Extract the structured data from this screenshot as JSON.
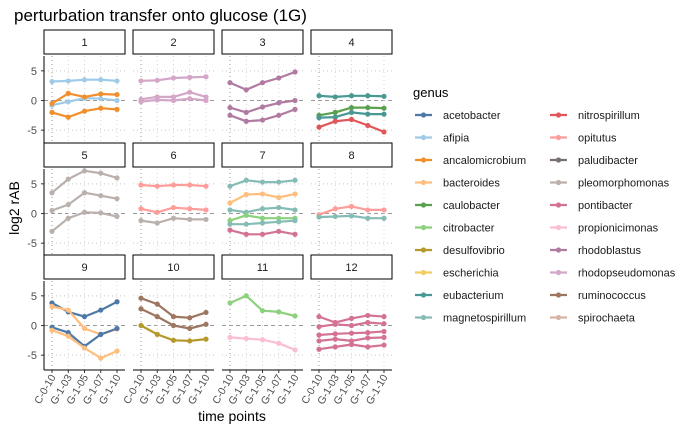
{
  "chart_data": {
    "type": "line",
    "title": "perturbation transfer onto glucose (1G)",
    "xlabel": "time points",
    "ylabel": "log2 rAB",
    "x": [
      "C-0-10",
      "G-1-03",
      "G-1-05",
      "G-1-07",
      "G-1-10"
    ],
    "ylim": [
      -7.5,
      7.5
    ],
    "yticks": [
      -5,
      0,
      5
    ],
    "legend_title": "genus",
    "legend_position": "right",
    "grid": true,
    "palette": {
      "acetobacter": "#4e79a7",
      "afipia": "#a0cbe8",
      "ancalomicrobium": "#f28e2b",
      "bacteroides": "#ffbe7d",
      "caulobacter": "#59a14f",
      "citrobacter": "#8cd17d",
      "desulfovibrio": "#b6992d",
      "escherichia": "#f1ce63",
      "eubacterium": "#499894",
      "magnetospirillum": "#86bcb6",
      "nitrospirillum": "#e15759",
      "opitutus": "#ff9d9a",
      "paludibacter": "#79706e",
      "pleomorphomonas": "#bab0ac",
      "pontibacter": "#d37295",
      "propionicimonas": "#fabfd2",
      "rhodoblastus": "#b07aa1",
      "rhodopseudomonas": "#d4a6c8",
      "ruminococcus": "#9d7660",
      "spirochaeta": "#d7b5a6"
    },
    "legend": [
      "acetobacter",
      "afipia",
      "ancalomicrobium",
      "bacteroides",
      "caulobacter",
      "citrobacter",
      "desulfovibrio",
      "escherichia",
      "eubacterium",
      "magnetospirillum",
      "nitrospirillum",
      "opitutus",
      "paludibacter",
      "pleomorphomonas",
      "pontibacter",
      "propionicimonas",
      "rhodoblastus",
      "rhodopseudomonas",
      "ruminococcus",
      "spirochaeta"
    ],
    "panels": [
      {
        "label": "1",
        "series": [
          {
            "genus": "afipia",
            "values": [
              3.2,
              3.3,
              3.5,
              3.5,
              3.3
            ]
          },
          {
            "genus": "afipia",
            "values": [
              -0.8,
              -0.2,
              0.4,
              0.3,
              0.0
            ]
          },
          {
            "genus": "ancalomicrobium",
            "values": [
              -0.5,
              1.2,
              0.6,
              1.1,
              1.0
            ]
          },
          {
            "genus": "ancalomicrobium",
            "values": [
              -2.0,
              -2.8,
              -1.8,
              -1.3,
              -1.5
            ]
          }
        ]
      },
      {
        "label": "2",
        "series": [
          {
            "genus": "rhodopseudomonas",
            "values": [
              3.3,
              3.4,
              3.8,
              3.9,
              4.0
            ]
          },
          {
            "genus": "rhodopseudomonas",
            "values": [
              0.2,
              0.6,
              0.6,
              1.4,
              0.6
            ]
          },
          {
            "genus": "rhodopseudomonas",
            "values": [
              -0.2,
              0.1,
              0.0,
              0.3,
              0.0
            ]
          }
        ]
      },
      {
        "label": "3",
        "series": [
          {
            "genus": "rhodoblastus",
            "values": [
              3.0,
              1.8,
              3.0,
              3.8,
              4.8
            ]
          },
          {
            "genus": "rhodoblastus",
            "values": [
              -1.2,
              -2.0,
              -1.1,
              -0.4,
              0.0
            ]
          },
          {
            "genus": "rhodoblastus",
            "values": [
              -2.5,
              -3.5,
              -3.3,
              -2.5,
              -1.5
            ]
          }
        ]
      },
      {
        "label": "4",
        "series": [
          {
            "genus": "eubacterium",
            "values": [
              0.8,
              0.6,
              0.8,
              0.8,
              0.7
            ]
          },
          {
            "genus": "caulobacter",
            "values": [
              -2.5,
              -2.0,
              -1.2,
              -1.2,
              -1.3
            ]
          },
          {
            "genus": "eubacterium",
            "values": [
              -2.9,
              -2.8,
              -2.0,
              -2.3,
              -2.3
            ]
          },
          {
            "genus": "nitrospirillum",
            "values": [
              -4.5,
              -3.5,
              -3.2,
              -4.2,
              -5.3
            ]
          }
        ]
      },
      {
        "label": "5",
        "series": [
          {
            "genus": "pleomorphomonas",
            "values": [
              3.5,
              5.8,
              7.2,
              6.8,
              6.0
            ]
          },
          {
            "genus": "pleomorphomonas",
            "values": [
              0.5,
              1.5,
              3.5,
              3.0,
              2.5
            ]
          },
          {
            "genus": "pleomorphomonas",
            "values": [
              -3.0,
              -0.8,
              0.2,
              0.1,
              -0.5
            ]
          }
        ]
      },
      {
        "label": "6",
        "series": [
          {
            "genus": "opitutus",
            "values": [
              4.8,
              4.6,
              4.8,
              4.8,
              4.6
            ]
          },
          {
            "genus": "opitutus",
            "values": [
              0.8,
              0.2,
              1.0,
              0.8,
              0.6
            ]
          },
          {
            "genus": "pleomorphomonas",
            "values": [
              -1.2,
              -1.6,
              -0.8,
              -1.0,
              -1.0
            ]
          }
        ]
      },
      {
        "label": "7",
        "series": [
          {
            "genus": "magnetospirillum",
            "values": [
              4.6,
              5.6,
              5.3,
              5.3,
              5.6
            ]
          },
          {
            "genus": "bacteroides",
            "values": [
              1.8,
              3.2,
              3.3,
              2.7,
              3.3
            ]
          },
          {
            "genus": "magnetospirillum",
            "values": [
              0.6,
              0.2,
              0.8,
              1.0,
              0.6
            ]
          },
          {
            "genus": "citrobacter",
            "values": [
              -1.2,
              -0.3,
              -0.8,
              -0.8,
              -0.8
            ]
          },
          {
            "genus": "magnetospirillum",
            "values": [
              -1.8,
              -1.8,
              -1.6,
              -1.4,
              -1.2
            ]
          },
          {
            "genus": "pontibacter",
            "values": [
              -2.8,
              -3.5,
              -3.5,
              -3.0,
              -3.5
            ]
          }
        ]
      },
      {
        "label": "8",
        "series": [
          {
            "genus": "opitutus",
            "values": [
              -0.2,
              0.8,
              1.2,
              0.6,
              0.6
            ]
          },
          {
            "genus": "magnetospirillum",
            "values": [
              -0.6,
              -0.5,
              -0.4,
              -0.8,
              -0.8
            ]
          }
        ]
      },
      {
        "label": "9",
        "series": [
          {
            "genus": "acetobacter",
            "values": [
              3.8,
              2.3,
              1.5,
              2.6,
              4.0
            ]
          },
          {
            "genus": "bacteroides",
            "values": [
              3.2,
              2.6,
              -0.5,
              -1.5,
              -0.6
            ]
          },
          {
            "genus": "acetobacter",
            "values": [
              -0.3,
              -1.2,
              -3.5,
              -1.5,
              -0.5
            ]
          },
          {
            "genus": "bacteroides",
            "values": [
              -0.8,
              -1.8,
              -3.8,
              -5.5,
              -4.3
            ]
          }
        ]
      },
      {
        "label": "10",
        "series": [
          {
            "genus": "ruminococcus",
            "values": [
              4.6,
              3.6,
              1.5,
              1.3,
              2.2
            ]
          },
          {
            "genus": "ruminococcus",
            "values": [
              2.8,
              1.5,
              0.0,
              -0.5,
              0.2
            ]
          },
          {
            "genus": "desulfovibrio",
            "values": [
              0.0,
              -1.5,
              -2.5,
              -2.6,
              -2.3
            ]
          }
        ]
      },
      {
        "label": "11",
        "series": [
          {
            "genus": "citrobacter",
            "values": [
              3.8,
              5.0,
              2.5,
              2.3,
              1.6
            ]
          },
          {
            "genus": "propionicimonas",
            "values": [
              -2.0,
              -2.2,
              -2.4,
              -3.0,
              -4.1
            ]
          }
        ]
      },
      {
        "label": "12",
        "series": [
          {
            "genus": "pontibacter",
            "values": [
              1.5,
              0.5,
              1.2,
              1.7,
              1.5
            ]
          },
          {
            "genus": "pontibacter",
            "values": [
              -0.2,
              0.2,
              0.0,
              0.5,
              0.3
            ]
          },
          {
            "genus": "pontibacter",
            "values": [
              -1.6,
              -1.4,
              -1.3,
              -1.2,
              -1.0
            ]
          },
          {
            "genus": "pontibacter",
            "values": [
              -2.6,
              -2.3,
              -2.6,
              -2.1,
              -2.0
            ]
          },
          {
            "genus": "pontibacter",
            "values": [
              -4.0,
              -3.6,
              -3.2,
              -3.6,
              -3.3
            ]
          }
        ]
      }
    ]
  }
}
